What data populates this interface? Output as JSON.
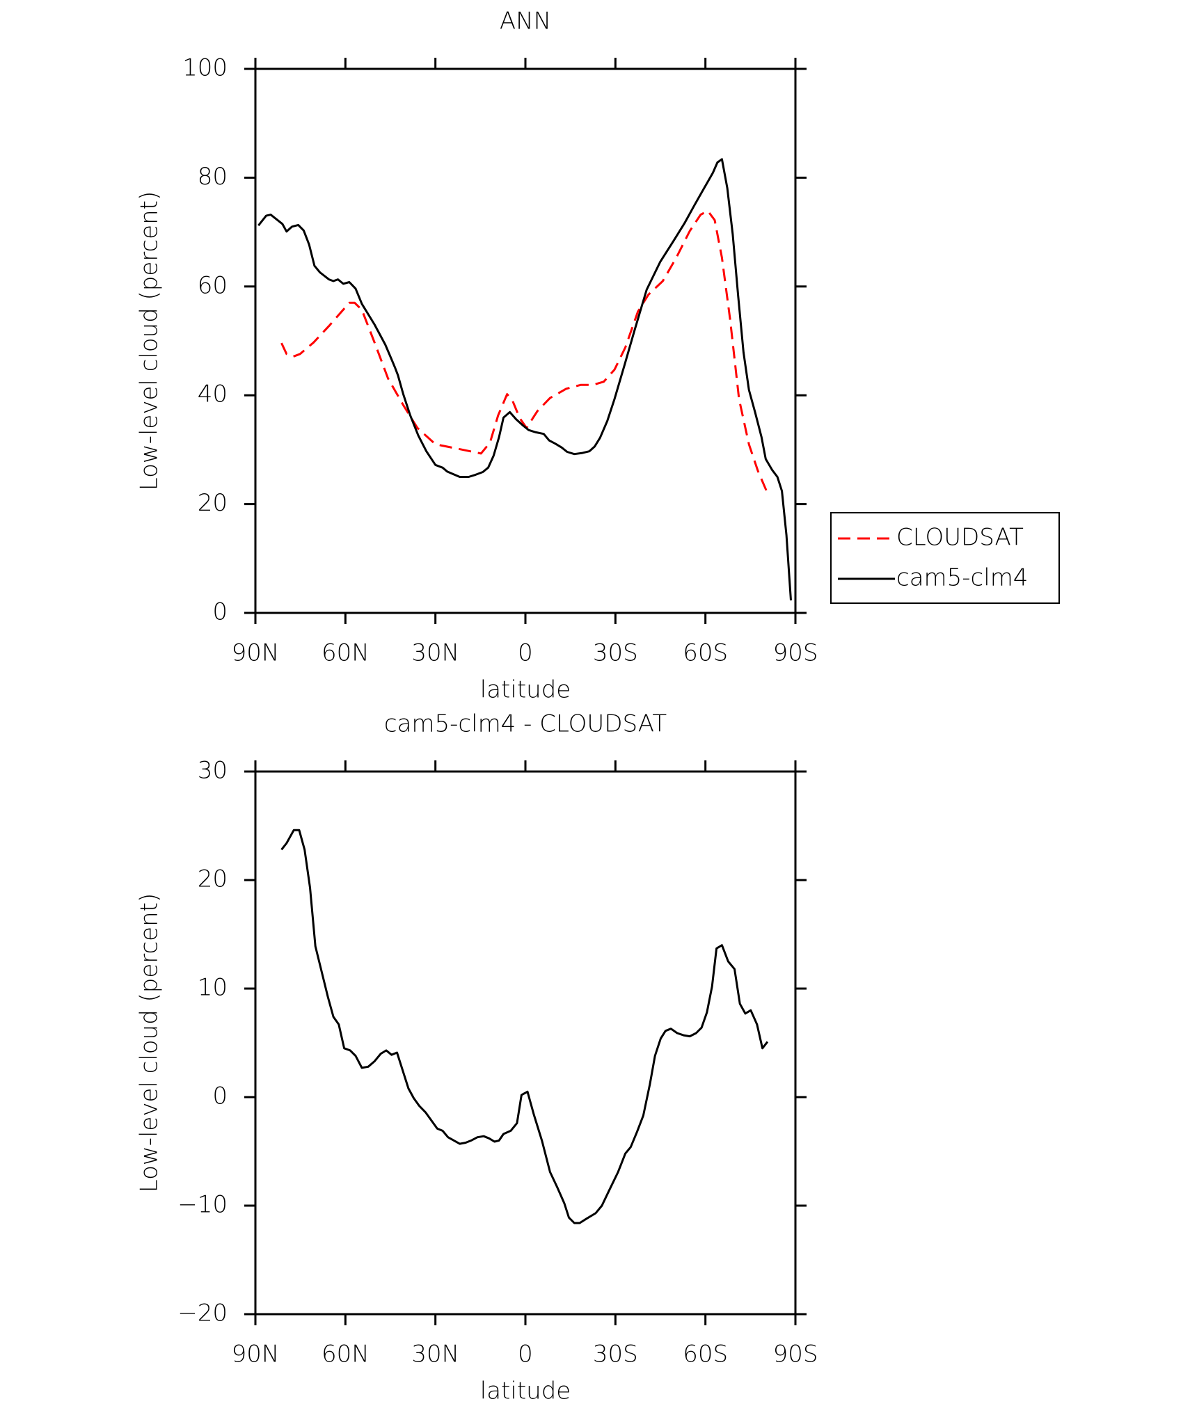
{
  "chart_data": [
    {
      "type": "line",
      "title": "ANN",
      "xlabel": "latitude",
      "ylabel": "Low-level cloud (percent)",
      "xlim": [
        90,
        -90
      ],
      "xticks": [
        {
          "value": 90,
          "label": "90N"
        },
        {
          "value": 60,
          "label": "60N"
        },
        {
          "value": 30,
          "label": "30N"
        },
        0,
        {
          "value": -30,
          "label": "30S"
        },
        {
          "value": -60,
          "label": "60S"
        },
        {
          "value": -90,
          "label": "90S"
        }
      ],
      "ylim": [
        0,
        100
      ],
      "yticks": [
        0,
        20,
        40,
        60,
        80,
        100
      ],
      "legend": "right",
      "series": [
        {
          "name": "CLOUDSAT",
          "color": "#ff0000",
          "line_style": "dashed",
          "x": [
            81.3,
            79.6,
            77.5,
            75.1,
            70.6,
            65.2,
            58.7,
            56.9,
            54.5,
            50.3,
            45.8,
            40.7,
            36,
            30,
            22.8,
            14.8,
            11.8,
            9.1,
            6.1,
            4.3,
            1.9,
            -0.4,
            -4,
            -8.2,
            -13.6,
            -18.4,
            -22.5,
            -26.1,
            -29.7,
            -33.3,
            -37.5,
            -41,
            -45.8,
            -50.3,
            -54.8,
            -58.4,
            -60.8,
            -63.1,
            -65.5,
            -68.2,
            -71.2,
            -74.5,
            -77.5,
            -80.7
          ],
          "values": [
            49.6,
            47.6,
            47.1,
            47.6,
            49.7,
            52.9,
            57,
            57,
            55.7,
            49.7,
            43.1,
            38.2,
            34,
            31,
            30.2,
            29.3,
            31.3,
            36.3,
            40.2,
            39,
            35.8,
            34,
            37.1,
            39.5,
            41.2,
            41.9,
            41.9,
            42.5,
            44.7,
            48.8,
            55.4,
            58.5,
            61,
            65.3,
            70.2,
            73.2,
            73.9,
            72.2,
            65.3,
            54.1,
            39.3,
            31,
            26.1,
            22
          ]
        },
        {
          "name": "cam5-clm4",
          "color": "#000000",
          "line_style": "solid",
          "x": [
            89,
            86.4,
            84.9,
            81,
            79.6,
            77.8,
            75.7,
            73.9,
            72.1,
            70.3,
            68.5,
            65.5,
            64,
            62.5,
            60.7,
            58.7,
            56.6,
            54.5,
            50.3,
            46.7,
            44.6,
            43.4,
            42.5,
            40.7,
            38.4,
            35.7,
            33,
            30,
            27.6,
            26.1,
            24,
            21.9,
            18.9,
            16.6,
            14.2,
            12.4,
            10.6,
            8.8,
            7.3,
            5.2,
            3.1,
            0.7,
            -1.1,
            -3.5,
            -6.1,
            -7.9,
            -10,
            -12.1,
            -13.9,
            -16.3,
            -19,
            -21.3,
            -23.1,
            -24.9,
            -27.3,
            -29.7,
            -33,
            -36.3,
            -40.4,
            -44.9,
            -49.4,
            -53,
            -56.3,
            -59.6,
            -62.5,
            -64,
            -65.5,
            -67.3,
            -69.1,
            -70.9,
            -72.7,
            -74.5,
            -76.6,
            -78.7,
            -80.1,
            -82.2,
            -84,
            -85.5,
            -87,
            -88.5
          ],
          "values": [
            71.2,
            73,
            73.2,
            71.5,
            70.1,
            71,
            71.3,
            70.3,
            67.7,
            63.8,
            62.6,
            61.3,
            61,
            61.3,
            60.5,
            60.8,
            59.6,
            56.8,
            53,
            49.3,
            46.6,
            45,
            43.7,
            40.2,
            36.3,
            32.6,
            29.7,
            27.2,
            26.7,
            26,
            25.5,
            25,
            25,
            25.4,
            25.9,
            26.7,
            28.9,
            32.3,
            35.9,
            36.9,
            35.6,
            34.4,
            33.6,
            33.2,
            32.9,
            31.7,
            31.1,
            30.4,
            29.6,
            29.2,
            29.4,
            29.7,
            30.6,
            32.2,
            35.3,
            39.3,
            45.5,
            51.8,
            59.4,
            64.5,
            68.4,
            71.6,
            74.9,
            78.1,
            80.9,
            82.8,
            83.4,
            78.1,
            69.6,
            58.3,
            47.9,
            41,
            36.8,
            32.3,
            28.3,
            26.3,
            25,
            22.4,
            14.3,
            2.3
          ]
        }
      ]
    },
    {
      "type": "line",
      "title": "cam5-clm4 - CLOUDSAT",
      "xlabel": "latitude",
      "ylabel": "Low-level cloud (percent)",
      "xlim": [
        90,
        -90
      ],
      "xticks": [
        {
          "value": 90,
          "label": "90N"
        },
        {
          "value": 60,
          "label": "60N"
        },
        {
          "value": 30,
          "label": "30N"
        },
        0,
        {
          "value": -30,
          "label": "30S"
        },
        {
          "value": -60,
          "label": "60S"
        },
        {
          "value": -90,
          "label": "90S"
        }
      ],
      "ylim": [
        -20,
        30
      ],
      "yticks": [
        -20,
        -10,
        0,
        10,
        20,
        30
      ],
      "series": [
        {
          "color": "#000000",
          "line_style": "solid",
          "x": [
            81.3,
            79.6,
            77.2,
            75.4,
            73.6,
            71.8,
            70,
            67.6,
            65.8,
            64,
            62.2,
            60.4,
            58.4,
            56.6,
            54.5,
            52.4,
            50.3,
            48.2,
            46.4,
            44.6,
            42.8,
            39,
            37.2,
            35.4,
            33.3,
            29.4,
            27.6,
            25.8,
            21.9,
            19.9,
            18.1,
            16,
            13.9,
            12.1,
            10.3,
            8.8,
            7.3,
            4.9,
            2.8,
            1.3,
            -0.7,
            -2.8,
            -5.5,
            -8.2,
            -10.6,
            -13,
            -14.5,
            -16.3,
            -18.1,
            -20.4,
            -23.4,
            -25.5,
            -27.9,
            -30.9,
            -33.3,
            -35.1,
            -37.2,
            -39.3,
            -41.5,
            -43.2,
            -45.1,
            -46.7,
            -48.5,
            -50.6,
            -52.7,
            -54.8,
            -56.9,
            -58.7,
            -60.5,
            -62.2,
            -63.7,
            -65.5,
            -67.6,
            -69.7,
            -71.5,
            -73.3,
            -75.1,
            -77.2,
            -79,
            -80.7
          ],
          "values": [
            22.8,
            23.4,
            24.6,
            24.6,
            22.8,
            19.3,
            13.9,
            11.2,
            9.2,
            7.4,
            6.7,
            4.5,
            4.3,
            3.8,
            2.7,
            2.8,
            3.3,
            4,
            4.3,
            3.9,
            4.1,
            0.8,
            -0.1,
            -0.8,
            -1.4,
            -2.9,
            -3.1,
            -3.7,
            -4.3,
            -4.2,
            -4,
            -3.7,
            -3.6,
            -3.8,
            -4.1,
            -4,
            -3.4,
            -3.1,
            -2.4,
            0.2,
            0.5,
            -1.6,
            -4,
            -6.9,
            -8.3,
            -9.8,
            -11.1,
            -11.6,
            -11.6,
            -11.2,
            -10.7,
            -10,
            -8.6,
            -6.9,
            -5.2,
            -4.6,
            -3.2,
            -1.7,
            1.2,
            3.8,
            5.4,
            6.1,
            6.3,
            5.9,
            5.7,
            5.6,
            5.9,
            6.4,
            7.8,
            10.2,
            13.7,
            14,
            12.5,
            11.8,
            8.6,
            7.7,
            8,
            6.7,
            4.5,
            5.1
          ]
        }
      ]
    }
  ]
}
